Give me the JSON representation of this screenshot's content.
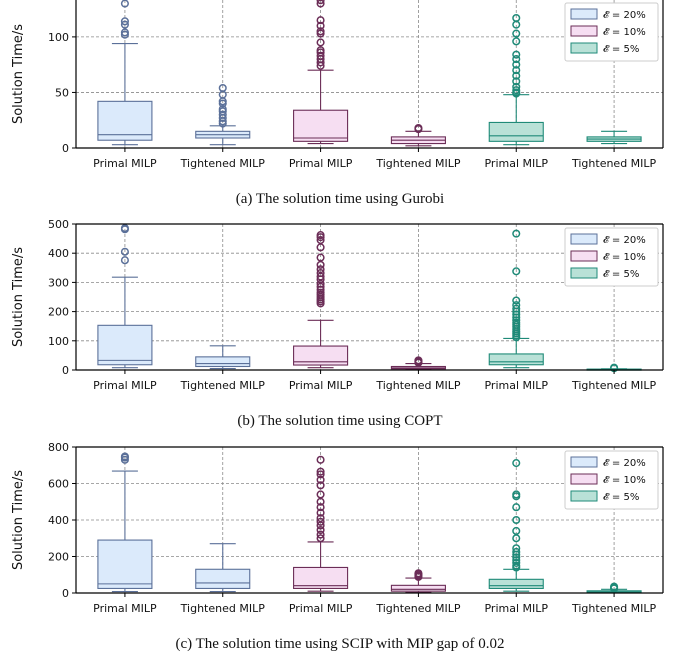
{
  "chart_data": [
    {
      "type": "box",
      "caption": "(a) The solution time using Gurobi",
      "ylabel": "Solution Time/s",
      "ylim": [
        0,
        135
      ],
      "yticks": [
        0,
        50,
        100
      ],
      "categories": [
        "Primal MILP",
        "Tightened MILP",
        "Primal MILP",
        "Tightened MILP",
        "Primal MILP",
        "Tightened MILP"
      ],
      "legend": {
        "position": "top-right",
        "entries": [
          "𝓔 = 20%",
          "𝓔 = 10%",
          "𝓔 = 5%"
        ]
      },
      "grid": true,
      "boxes": [
        {
          "series": 0,
          "whisker_low": 3,
          "q1": 7,
          "median": 12,
          "q3": 42,
          "whisker_high": 94,
          "outliers": [
            102,
            104,
            111,
            114,
            130,
            134
          ]
        },
        {
          "series": 0,
          "whisker_low": 3,
          "q1": 9,
          "median": 12,
          "q3": 15,
          "whisker_high": 20,
          "outliers": [
            22,
            24,
            27,
            30,
            33,
            35,
            40,
            42,
            48,
            54
          ]
        },
        {
          "series": 1,
          "whisker_low": 4,
          "q1": 6,
          "median": 9,
          "q3": 34,
          "whisker_high": 70,
          "outliers": [
            74,
            77,
            80,
            83,
            86,
            88,
            95,
            103,
            105,
            110,
            115,
            130,
            133
          ]
        },
        {
          "series": 1,
          "whisker_low": 2,
          "q1": 4,
          "median": 7,
          "q3": 10,
          "whisker_high": 15,
          "outliers": [
            17,
            18
          ]
        },
        {
          "series": 2,
          "whisker_low": 3,
          "q1": 6,
          "median": 11,
          "q3": 23,
          "whisker_high": 48,
          "outliers": [
            49,
            50,
            52,
            55,
            60,
            65,
            70,
            75,
            80,
            84,
            96,
            103,
            111,
            117,
            134
          ]
        },
        {
          "series": 2,
          "whisker_low": 4,
          "q1": 6,
          "median": 8,
          "q3": 10,
          "whisker_high": 15,
          "outliers": []
        }
      ]
    },
    {
      "type": "box",
      "caption": "(b) The solution time using COPT",
      "ylabel": "Solution Time/s",
      "ylim": [
        0,
        500
      ],
      "yticks": [
        0,
        100,
        200,
        300,
        400,
        500
      ],
      "categories": [
        "Primal MILP",
        "Tightened MILP",
        "Primal MILP",
        "Tightened MILP",
        "Primal MILP",
        "Tightened MILP"
      ],
      "legend": {
        "position": "top-right",
        "entries": [
          "𝓔 = 20%",
          "𝓔 = 10%",
          "𝓔 = 5%"
        ]
      },
      "grid": true,
      "boxes": [
        {
          "series": 0,
          "whisker_low": 8,
          "q1": 18,
          "median": 33,
          "q3": 153,
          "whisker_high": 318,
          "outliers": [
            376,
            405,
            482,
            486
          ]
        },
        {
          "series": 0,
          "whisker_low": 5,
          "q1": 12,
          "median": 22,
          "q3": 45,
          "whisker_high": 83,
          "outliers": []
        },
        {
          "series": 1,
          "whisker_low": 8,
          "q1": 17,
          "median": 28,
          "q3": 82,
          "whisker_high": 170,
          "outliers": [
            228,
            235,
            242,
            250,
            258,
            265,
            275,
            285,
            295,
            310,
            320,
            332,
            345,
            360,
            385,
            420,
            445,
            455,
            462
          ]
        },
        {
          "series": 1,
          "whisker_low": 2,
          "q1": 4,
          "median": 7,
          "q3": 12,
          "whisker_high": 22,
          "outliers": [
            25,
            28,
            30,
            33
          ]
        },
        {
          "series": 2,
          "whisker_low": 8,
          "q1": 18,
          "median": 28,
          "q3": 55,
          "whisker_high": 108,
          "outliers": [
            112,
            118,
            125,
            132,
            140,
            148,
            155,
            162,
            170,
            180,
            190,
            200,
            210,
            222,
            238,
            338,
            467
          ]
        },
        {
          "series": 2,
          "whisker_low": 1,
          "q1": 1,
          "median": 2,
          "q3": 3,
          "whisker_high": 4,
          "outliers": [
            6,
            8
          ]
        }
      ]
    },
    {
      "type": "box",
      "caption": "(c) The solution time using SCIP with MIP gap of 0.02",
      "ylabel": "Solution Time/s",
      "ylim": [
        0,
        800
      ],
      "yticks": [
        0,
        200,
        400,
        600,
        800
      ],
      "categories": [
        "Primal MILP",
        "Tightened MILP",
        "Primal MILP",
        "Tightened MILP",
        "Primal MILP",
        "Tightened MILP"
      ],
      "legend": {
        "position": "top-right",
        "entries": [
          "𝓔 = 20%",
          "𝓔 = 10%",
          "𝓔 = 5%"
        ]
      },
      "grid": true,
      "boxes": [
        {
          "series": 0,
          "whisker_low": 8,
          "q1": 25,
          "median": 50,
          "q3": 290,
          "whisker_high": 668,
          "outliers": [
            730,
            742,
            748
          ]
        },
        {
          "series": 0,
          "whisker_low": 8,
          "q1": 25,
          "median": 55,
          "q3": 130,
          "whisker_high": 270,
          "outliers": []
        },
        {
          "series": 1,
          "whisker_low": 10,
          "q1": 25,
          "median": 40,
          "q3": 140,
          "whisker_high": 280,
          "outliers": [
            300,
            320,
            345,
            370,
            390,
            410,
            440,
            470,
            500,
            540,
            590,
            620,
            650,
            665,
            730
          ]
        },
        {
          "series": 1,
          "whisker_low": 3,
          "q1": 10,
          "median": 20,
          "q3": 42,
          "whisker_high": 82,
          "outliers": [
            88,
            95,
            102,
            108
          ]
        },
        {
          "series": 2,
          "whisker_low": 10,
          "q1": 25,
          "median": 40,
          "q3": 75,
          "whisker_high": 130,
          "outliers": [
            140,
            150,
            165,
            180,
            195,
            210,
            225,
            245,
            300,
            340,
            400,
            470,
            530,
            540,
            712
          ]
        },
        {
          "series": 2,
          "whisker_low": 1,
          "q1": 3,
          "median": 6,
          "q3": 12,
          "whisker_high": 20,
          "outliers": [
            25,
            30,
            35
          ]
        }
      ]
    }
  ],
  "colors": {
    "series": [
      {
        "fill": "#dbeafb",
        "stroke": "#5b7099"
      },
      {
        "fill": "#f6def2",
        "stroke": "#6b2d57"
      },
      {
        "fill": "#b9e1d7",
        "stroke": "#1f8a78"
      }
    ],
    "grid": "#8a8a8a",
    "axis": "#000000"
  }
}
